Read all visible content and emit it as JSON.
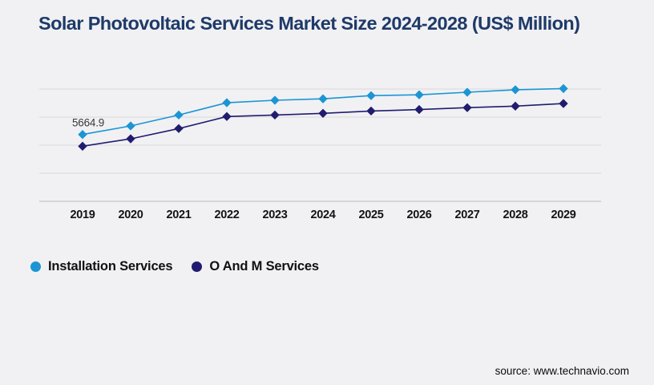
{
  "page": {
    "background": "#f1f1f4"
  },
  "title": "Solar Photovoltaic Services Market Size 2024-2028 (US$ Million)",
  "source": "source: www.technavio.com",
  "chart_data": {
    "type": "line",
    "title": "Solar Photovoltaic Services Market Size 2024-2028 (US$ Million)",
    "x": [
      "2019",
      "2020",
      "2021",
      "2022",
      "2023",
      "2024",
      "2025",
      "2026",
      "2027",
      "2028",
      "2029"
    ],
    "series": [
      {
        "name": "Installation Services",
        "color": "#1b95d3",
        "marker": "diamond",
        "values": [
          5664.9,
          6390,
          7320,
          8360,
          8570,
          8690,
          8960,
          9030,
          9250,
          9460,
          9560
        ]
      },
      {
        "name": "O And M Services",
        "color": "#211c6e",
        "marker": "diamond",
        "values": [
          4670,
          5300,
          6170,
          7190,
          7320,
          7460,
          7660,
          7780,
          7940,
          8070,
          8290
        ]
      }
    ],
    "data_labels": [
      {
        "series": "Installation Services",
        "x": "2019",
        "text": "5664.9"
      }
    ],
    "xlabel": "",
    "ylabel": "",
    "ylim": [
      0,
      9860
    ],
    "grid": "horizontal",
    "gridline_color": "#d9d9dc",
    "axis_line_color": "#c6c6ca",
    "legend_position": "bottom-left"
  }
}
